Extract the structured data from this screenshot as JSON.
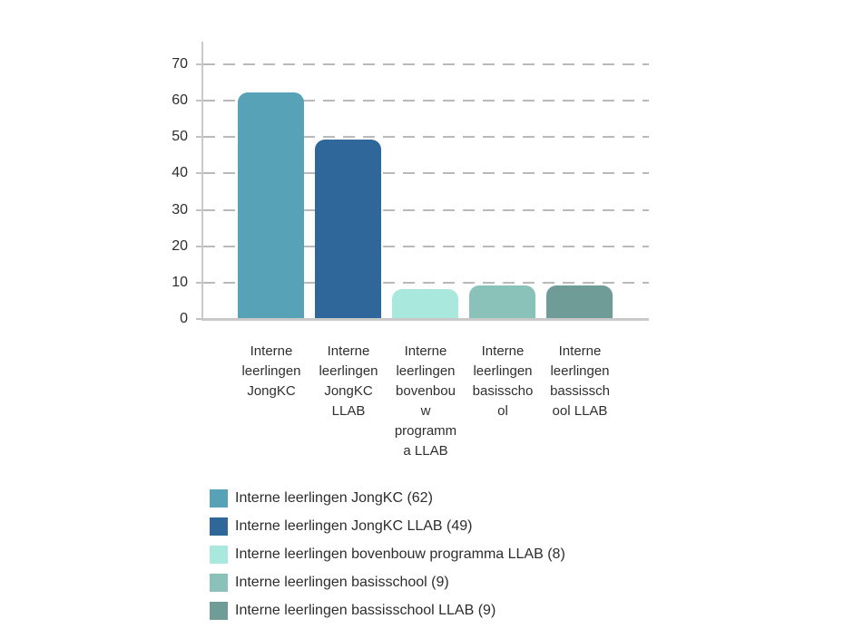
{
  "page": {
    "background": "#ffffff"
  },
  "chart_data": {
    "type": "bar",
    "title": "",
    "xlabel": "",
    "ylabel": "",
    "categories": [
      "Interne leerlingen JongKC",
      "Interne leerlingen JongKC LLAB",
      "Interne leerlingen bovenbouw programma LLAB",
      "Interne leerlingen basisschool",
      "Interne leerlingen bassisschool LLAB"
    ],
    "category_labels_wrapped": [
      "Interne\nleerlingen\nJongKC",
      "Interne\nleerlingen\nJongKC\nLLAB",
      "Interne\nleerlingen\nbovenbou\nw\nprogramm\na LLAB",
      "Interne\nleerlingen\nbasisscho\nol",
      "Interne\nleerlingen\nbassissch\nool LLAB"
    ],
    "values": [
      62,
      49,
      8,
      9,
      9
    ],
    "bar_colors": [
      "#58a2b7",
      "#2f679b",
      "#a9e8dc",
      "#8ac2ba",
      "#6f9c96"
    ],
    "yticks": [
      0,
      10,
      20,
      30,
      40,
      50,
      60,
      70
    ],
    "ylim": [
      0,
      76
    ],
    "grid": "horizontal-dashed",
    "gridline_color": "#b9b9b9",
    "axis_color": "#c9c9c9",
    "text_color": "#2d2d2d",
    "legend": {
      "position": "bottom-left",
      "entries": [
        {
          "label": "Interne leerlingen JongKC (62)",
          "color": "#58a2b7"
        },
        {
          "label": "Interne leerlingen JongKC LLAB (49)",
          "color": "#2f679b"
        },
        {
          "label": "Interne leerlingen bovenbouw programma LLAB (8)",
          "color": "#a9e8dc"
        },
        {
          "label": "Interne leerlingen basisschool (9)",
          "color": "#8ac2ba"
        },
        {
          "label": "Interne leerlingen bassisschool LLAB (9)",
          "color": "#6f9c96"
        }
      ]
    }
  }
}
